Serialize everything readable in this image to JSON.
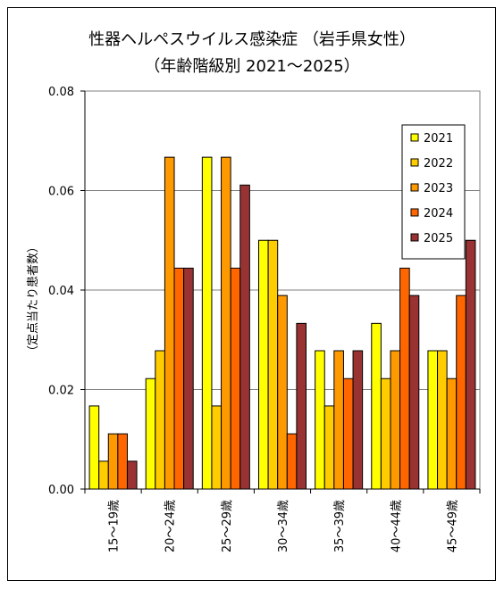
{
  "chart_data": {
    "type": "bar",
    "title_lines": [
      "性器ヘルペスウイルス感染症 （岩手県女性）",
      "（年齢階級別 2021～2025）"
    ],
    "ylabel": "（定点当たり患者数）",
    "xlabel": "",
    "ylim": [
      0,
      0.08
    ],
    "yticks": [
      "0.00",
      "0.02",
      "0.04",
      "0.06",
      "0.08"
    ],
    "ytick_values": [
      0,
      0.02,
      0.04,
      0.06,
      0.08
    ],
    "categories": [
      "15～19歳",
      "20～24歳",
      "25～29歳",
      "30～34歳",
      "35～39歳",
      "40～44歳",
      "45～49歳"
    ],
    "series": [
      {
        "name": "2021",
        "color": "#FFFF00",
        "values": [
          0.0167,
          0.0222,
          0.0667,
          0.05,
          0.0278,
          0.0333,
          0.0278
        ]
      },
      {
        "name": "2022",
        "color": "#FFCC00",
        "values": [
          0.0056,
          0.0278,
          0.0167,
          0.05,
          0.0167,
          0.0222,
          0.0278
        ]
      },
      {
        "name": "2023",
        "color": "#FF9900",
        "values": [
          0.0111,
          0.0667,
          0.0667,
          0.0389,
          0.0278,
          0.0278,
          0.0222
        ]
      },
      {
        "name": "2024",
        "color": "#FF6600",
        "values": [
          0.0111,
          0.0444,
          0.0444,
          0.0111,
          0.0222,
          0.0444,
          0.0389
        ]
      },
      {
        "name": "2025",
        "color": "#993333",
        "values": [
          0.0056,
          0.0444,
          0.0611,
          0.0333,
          0.0278,
          0.0389,
          0.05
        ]
      }
    ],
    "grid": true,
    "legend_position": "right"
  }
}
